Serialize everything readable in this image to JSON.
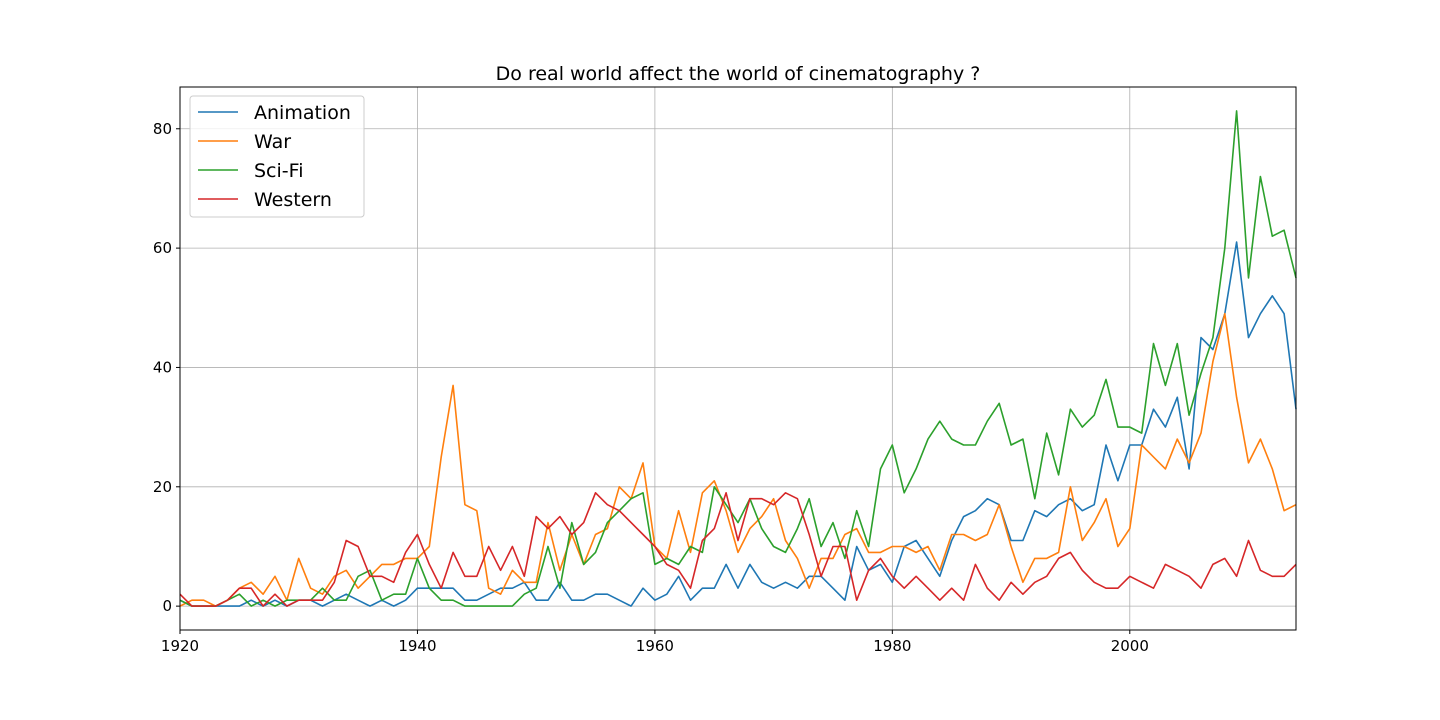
{
  "chart_data": {
    "type": "line",
    "title": "Do real world affect the world of cinematography ?",
    "xlabel": "",
    "ylabel": "",
    "xlim": [
      1920,
      2014
    ],
    "ylim": [
      -4,
      87
    ],
    "xticks": [
      1920,
      1940,
      1960,
      1980,
      2000
    ],
    "yticks": [
      0,
      20,
      40,
      60,
      80
    ],
    "grid": true,
    "legend_position": "top-left",
    "x": [
      1920,
      1921,
      1922,
      1923,
      1924,
      1925,
      1926,
      1927,
      1928,
      1929,
      1930,
      1931,
      1932,
      1933,
      1934,
      1935,
      1936,
      1937,
      1938,
      1939,
      1940,
      1941,
      1942,
      1943,
      1944,
      1945,
      1946,
      1947,
      1948,
      1949,
      1950,
      1951,
      1952,
      1953,
      1954,
      1955,
      1956,
      1957,
      1958,
      1959,
      1960,
      1961,
      1962,
      1963,
      1964,
      1965,
      1966,
      1967,
      1968,
      1969,
      1970,
      1971,
      1972,
      1973,
      1974,
      1975,
      1976,
      1977,
      1978,
      1979,
      1980,
      1981,
      1982,
      1983,
      1984,
      1985,
      1986,
      1987,
      1988,
      1989,
      1990,
      1991,
      1992,
      1993,
      1994,
      1995,
      1996,
      1997,
      1998,
      1999,
      2000,
      2001,
      2002,
      2003,
      2004,
      2005,
      2006,
      2007,
      2008,
      2009,
      2010,
      2011,
      2012,
      2013,
      2014
    ],
    "series": [
      {
        "name": "Animation",
        "color": "#1f77b4",
        "values": [
          1,
          0,
          0,
          0,
          0,
          0,
          1,
          0,
          1,
          0,
          1,
          1,
          0,
          1,
          2,
          1,
          0,
          1,
          0,
          1,
          3,
          3,
          3,
          3,
          1,
          1,
          2,
          3,
          3,
          4,
          1,
          1,
          4,
          1,
          1,
          2,
          2,
          1,
          0,
          3,
          1,
          2,
          5,
          1,
          3,
          3,
          7,
          3,
          7,
          4,
          3,
          4,
          3,
          5,
          5,
          3,
          1,
          10,
          6,
          7,
          4,
          10,
          11,
          8,
          5,
          11,
          15,
          16,
          18,
          17,
          11,
          11,
          16,
          15,
          17,
          18,
          16,
          17,
          27,
          21,
          27,
          27,
          33,
          30,
          35,
          23,
          45,
          43,
          49,
          61,
          45,
          49,
          52,
          49,
          33
        ]
      },
      {
        "name": "War",
        "color": "#ff7f0e",
        "values": [
          0,
          1,
          1,
          0,
          1,
          3,
          4,
          2,
          5,
          1,
          8,
          3,
          2,
          5,
          6,
          3,
          5,
          7,
          7,
          8,
          8,
          10,
          25,
          37,
          17,
          16,
          3,
          2,
          6,
          4,
          4,
          14,
          6,
          12,
          7,
          12,
          13,
          20,
          18,
          24,
          10,
          8,
          16,
          9,
          19,
          21,
          16,
          9,
          13,
          15,
          18,
          11,
          8,
          3,
          8,
          8,
          12,
          13,
          9,
          9,
          10,
          10,
          9,
          10,
          6,
          12,
          12,
          11,
          12,
          17,
          10,
          4,
          8,
          8,
          9,
          20,
          11,
          14,
          18,
          10,
          13,
          27,
          25,
          23,
          28,
          24,
          29,
          41,
          49,
          35,
          24,
          28,
          23,
          16,
          17
        ]
      },
      {
        "name": "Sci-Fi",
        "color": "#2ca02c",
        "values": [
          1,
          0,
          0,
          0,
          1,
          2,
          0,
          1,
          0,
          1,
          1,
          1,
          3,
          1,
          1,
          5,
          6,
          1,
          2,
          2,
          8,
          3,
          1,
          1,
          0,
          0,
          0,
          0,
          0,
          2,
          3,
          10,
          3,
          14,
          7,
          9,
          14,
          16,
          18,
          19,
          7,
          8,
          7,
          10,
          9,
          20,
          17,
          14,
          18,
          13,
          10,
          9,
          13,
          18,
          10,
          14,
          8,
          16,
          10,
          23,
          27,
          19,
          23,
          28,
          31,
          28,
          27,
          27,
          31,
          34,
          27,
          28,
          18,
          29,
          22,
          33,
          30,
          32,
          38,
          30,
          30,
          29,
          44,
          37,
          44,
          32,
          39,
          45,
          60,
          83,
          55,
          72,
          62,
          63,
          55
        ]
      },
      {
        "name": "Western",
        "color": "#d62728",
        "values": [
          2,
          0,
          0,
          0,
          1,
          3,
          3,
          0,
          2,
          0,
          1,
          1,
          1,
          4,
          11,
          10,
          5,
          5,
          4,
          9,
          12,
          7,
          3,
          9,
          5,
          5,
          10,
          6,
          10,
          5,
          15,
          13,
          15,
          12,
          14,
          19,
          17,
          16,
          14,
          12,
          10,
          7,
          6,
          3,
          11,
          13,
          19,
          11,
          18,
          18,
          17,
          19,
          18,
          12,
          5,
          10,
          10,
          1,
          6,
          8,
          5,
          3,
          5,
          3,
          1,
          3,
          1,
          7,
          3,
          1,
          4,
          2,
          4,
          5,
          8,
          9,
          6,
          4,
          3,
          3,
          5,
          4,
          3,
          7,
          6,
          5,
          3,
          7,
          8,
          5,
          11,
          6,
          5,
          5,
          7
        ]
      }
    ]
  }
}
